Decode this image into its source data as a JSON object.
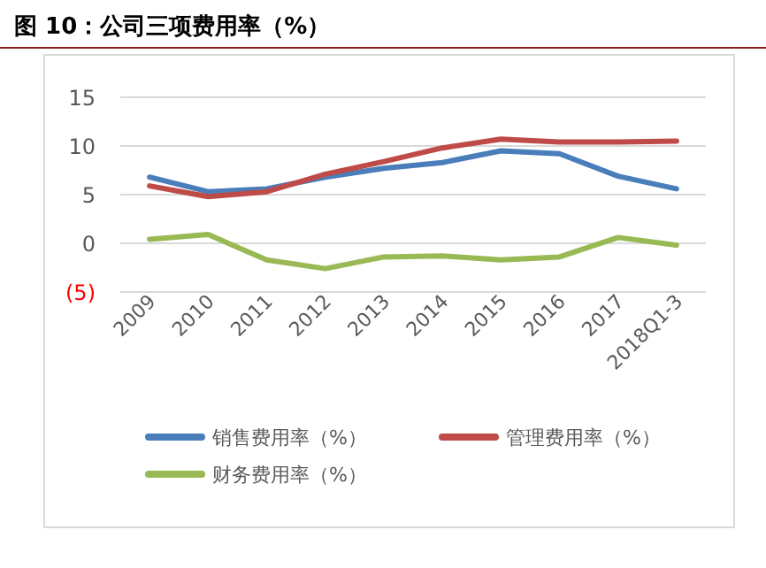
{
  "chart_data": {
    "type": "line",
    "title": "**图 10：公司三项费用率（%）**",
    "categories": [
      "2009",
      "2010",
      "2011",
      "2012",
      "2013",
      "2014",
      "2015",
      "2016",
      "2017",
      "2018Q1-3"
    ],
    "series": [
      {
        "name": "销售费用率（%）",
        "color": "#4a7ebb",
        "values": [
          6.8,
          5.3,
          5.6,
          6.8,
          7.7,
          8.3,
          9.5,
          9.2,
          6.9,
          5.6
        ]
      },
      {
        "name": "管理费用率（%）",
        "color": "#be4b48",
        "values": [
          5.9,
          4.8,
          5.3,
          7.1,
          8.4,
          9.8,
          10.7,
          10.4,
          10.4,
          10.5
        ]
      },
      {
        "name": "财务费用率（%）",
        "color": "#98b954",
        "values": [
          0.4,
          0.9,
          -1.7,
          -2.6,
          -1.4,
          -1.3,
          -1.7,
          -1.4,
          0.6,
          -0.2
        ]
      }
    ],
    "ylim": [
      -5,
      15
    ],
    "yticks": [
      {
        "value": -5,
        "label": "(5)"
      },
      0,
      5,
      10,
      15
    ],
    "grid": "y",
    "legend": "bottom",
    "marker": "none",
    "line_style": "solid"
  }
}
